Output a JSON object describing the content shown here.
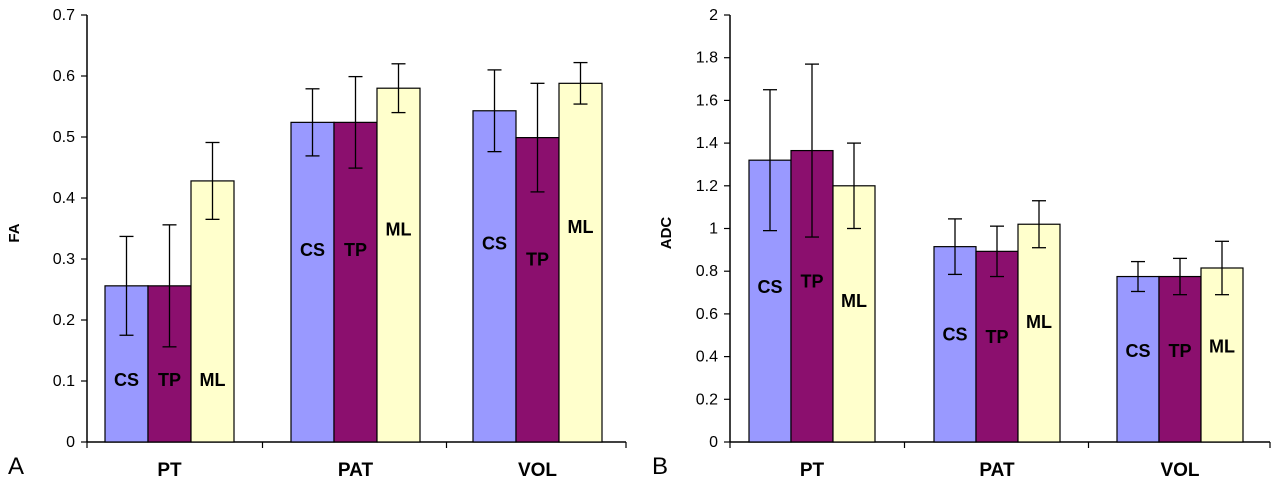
{
  "colors": {
    "CS": "#9999ff",
    "TP": "#8b0f6e",
    "ML": "#ffffcc",
    "axis": "#000000"
  },
  "chart_data": [
    {
      "type": "bar",
      "panel": "A",
      "ylabel": "FA",
      "xlabel": "",
      "ylim": [
        0,
        0.7
      ],
      "yticks": [
        0,
        0.1,
        0.2,
        0.3,
        0.4,
        0.5,
        0.6,
        0.7
      ],
      "categories": [
        "PT",
        "PAT",
        "VOL"
      ],
      "series": [
        {
          "name": "CS",
          "values": [
            0.256,
            0.524,
            0.543
          ],
          "errors": [
            0.081,
            0.055,
            0.067
          ]
        },
        {
          "name": "TP",
          "values": [
            0.256,
            0.524,
            0.499
          ],
          "errors": [
            0.1,
            0.075,
            0.089
          ]
        },
        {
          "name": "ML",
          "values": [
            0.428,
            0.58,
            0.588
          ],
          "errors": [
            0.063,
            0.04,
            0.034
          ]
        }
      ]
    },
    {
      "type": "bar",
      "panel": "B",
      "ylabel": "ADC",
      "xlabel": "",
      "ylim": [
        0,
        2
      ],
      "yticks": [
        0,
        0.2,
        0.4,
        0.6,
        0.8,
        1,
        1.2,
        1.4,
        1.6,
        1.8,
        2
      ],
      "categories": [
        "PT",
        "PAT",
        "VOL"
      ],
      "series": [
        {
          "name": "CS",
          "values": [
            1.32,
            0.915,
            0.775
          ],
          "errors": [
            0.33,
            0.13,
            0.07
          ]
        },
        {
          "name": "TP",
          "values": [
            1.365,
            0.893,
            0.775
          ],
          "errors": [
            0.405,
            0.118,
            0.085
          ]
        },
        {
          "name": "ML",
          "values": [
            1.2,
            1.02,
            0.815
          ],
          "errors": [
            0.2,
            0.11,
            0.125
          ]
        }
      ]
    }
  ]
}
